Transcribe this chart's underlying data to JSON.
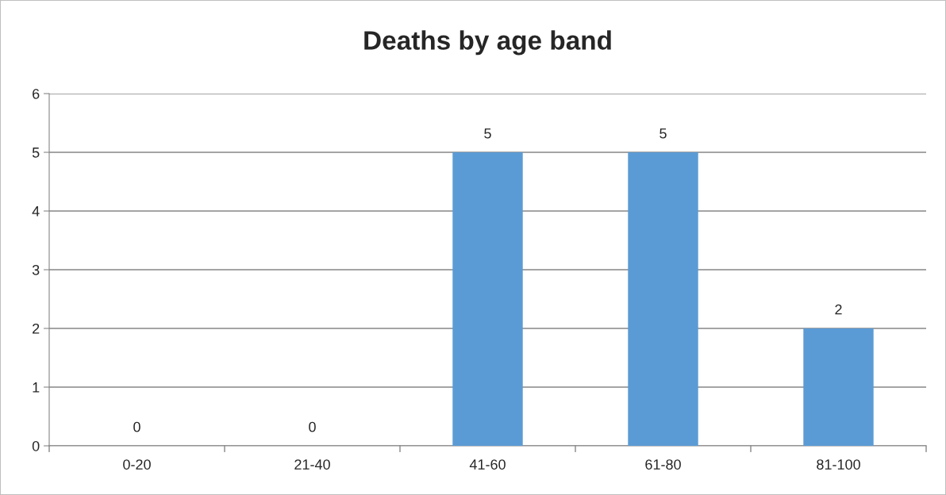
{
  "chart_data": {
    "type": "bar",
    "title": "Deaths by age band",
    "categories": [
      "0-20",
      "21-40",
      "41-60",
      "61-80",
      "81-100"
    ],
    "values": [
      0,
      0,
      5,
      5,
      2
    ],
    "color": "#5b9bd5",
    "ylim": [
      0,
      6
    ],
    "yticks": [
      0,
      1,
      2,
      3,
      4,
      5,
      6
    ],
    "grid": "y",
    "data_labels": true
  }
}
